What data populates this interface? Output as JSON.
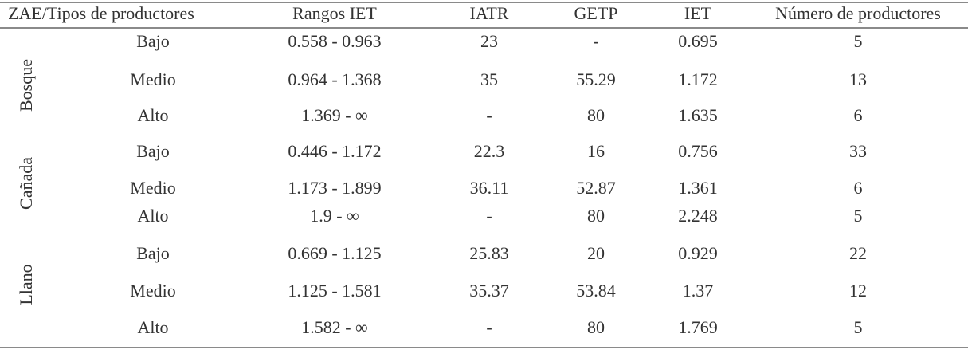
{
  "table": {
    "header": [
      "ZAE/Tipos de productores",
      "Rangos IET",
      "IATR",
      "GETP",
      "IET",
      "Número de productores"
    ],
    "groups": [
      {
        "zone": "Bosque",
        "rows": [
          [
            "Bajo",
            "0.558 - 0.963",
            "23",
            "-",
            "0.695",
            "5"
          ],
          [
            "Medio",
            "0.964 - 1.368",
            "35",
            "55.29",
            "1.172",
            "13"
          ],
          [
            "Alto",
            "1.369 - ∞",
            "-",
            "80",
            "1.635",
            "6"
          ]
        ]
      },
      {
        "zone": "Cañada",
        "rows": [
          [
            "Bajo",
            "0.446 - 1.172",
            "22.3",
            "16",
            "0.756",
            "33"
          ],
          [
            "Medio",
            "1.173 - 1.899",
            "36.11",
            "52.87",
            "1.361",
            "6"
          ],
          [
            "Alto",
            "1.9 - ∞",
            "-",
            "80",
            "2.248",
            "5"
          ]
        ]
      },
      {
        "zone": "Llano",
        "rows": [
          [
            "Bajo",
            "0.669 - 1.125",
            "25.83",
            "20",
            "0.929",
            "22"
          ],
          [
            "Medio",
            "1.125 - 1.581",
            "35.37",
            "53.84",
            "1.37",
            "12"
          ],
          [
            "Alto",
            "1.582 - ∞",
            "-",
            "80",
            "1.769",
            "5"
          ]
        ]
      }
    ]
  }
}
